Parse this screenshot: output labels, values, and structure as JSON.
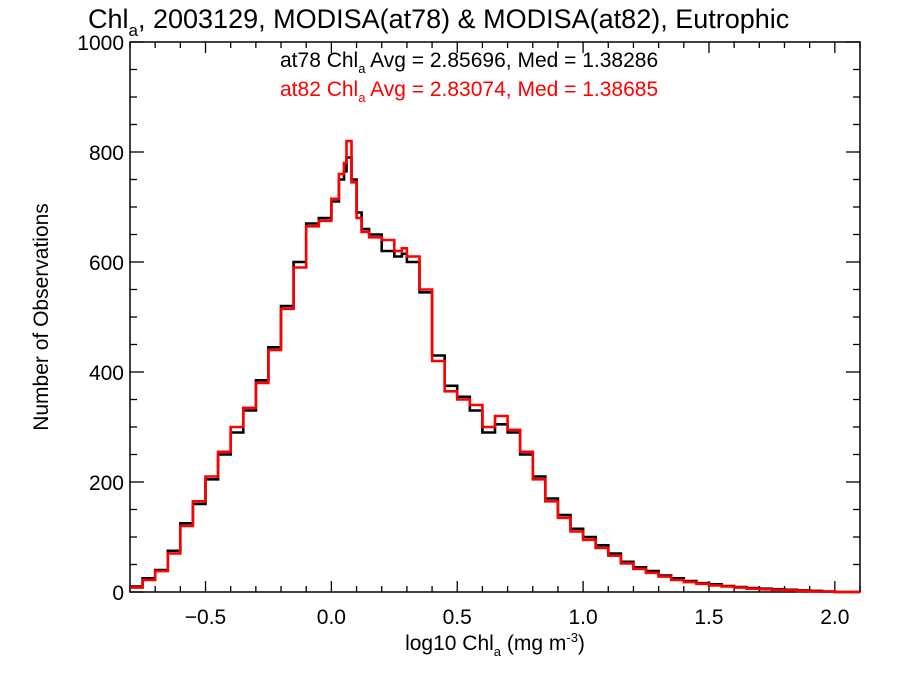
{
  "chart_data": {
    "type": "line",
    "title": {
      "main": "Chl",
      "sub": "a",
      "rest": ", 2003129, MODISA(at78) & MODISA(at82), Eutrophic"
    },
    "xlabel": {
      "main": "log10 Chl",
      "sub": "a",
      "unit_pre": " (mg m",
      "unit_sup": "-3",
      "unit_post": ")"
    },
    "ylabel": "Number of Observations",
    "xlim": [
      -0.8,
      2.1
    ],
    "ylim": [
      0,
      1000
    ],
    "xticks": [
      -0.5,
      0.0,
      0.5,
      1.0,
      1.5,
      2.0
    ],
    "xtick_labels": [
      "−0.5",
      "0.0",
      "0.5",
      "1.0",
      "1.5",
      "2.0"
    ],
    "yticks": [
      0,
      200,
      400,
      600,
      800,
      1000
    ],
    "ytick_labels": [
      "0",
      "200",
      "400",
      "600",
      "800",
      "1000"
    ],
    "grid": false,
    "step": "histogram",
    "annotations": [
      {
        "prefix": "at78 Chl",
        "sub": "a",
        "suffix": " Avg = 2.85696, Med = 1.38286",
        "color": "#000000"
      },
      {
        "prefix": "at82 Chl",
        "sub": "a",
        "suffix": " Avg = 2.83074, Med = 1.38685",
        "color": "#ff0000"
      }
    ],
    "series": [
      {
        "color": "#000000",
        "x": [
          -0.8,
          -0.75,
          -0.7,
          -0.65,
          -0.6,
          -0.55,
          -0.5,
          -0.45,
          -0.4,
          -0.35,
          -0.3,
          -0.25,
          -0.2,
          -0.15,
          -0.1,
          -0.05,
          0.0,
          0.03,
          0.05,
          0.06,
          0.08,
          0.1,
          0.12,
          0.15,
          0.2,
          0.25,
          0.28,
          0.3,
          0.35,
          0.4,
          0.45,
          0.5,
          0.55,
          0.6,
          0.65,
          0.7,
          0.75,
          0.8,
          0.85,
          0.9,
          0.95,
          1.0,
          1.05,
          1.1,
          1.15,
          1.2,
          1.25,
          1.3,
          1.35,
          1.4,
          1.45,
          1.5,
          1.55,
          1.6,
          1.65,
          1.7,
          1.75,
          1.8,
          1.85,
          1.9,
          1.95,
          2.0,
          2.05
        ],
        "y": [
          10,
          25,
          40,
          75,
          125,
          160,
          205,
          250,
          290,
          330,
          385,
          445,
          520,
          600,
          670,
          680,
          710,
          750,
          765,
          790,
          750,
          690,
          660,
          650,
          620,
          610,
          615,
          600,
          545,
          430,
          375,
          355,
          330,
          290,
          305,
          290,
          250,
          210,
          170,
          140,
          115,
          100,
          85,
          70,
          55,
          45,
          38,
          30,
          25,
          20,
          16,
          14,
          11,
          9,
          7,
          6,
          5,
          4,
          3,
          2,
          1,
          0,
          0
        ]
      },
      {
        "color": "#ff0000",
        "x": [
          -0.8,
          -0.75,
          -0.7,
          -0.65,
          -0.6,
          -0.55,
          -0.5,
          -0.45,
          -0.4,
          -0.35,
          -0.3,
          -0.25,
          -0.2,
          -0.15,
          -0.1,
          -0.05,
          0.0,
          0.03,
          0.05,
          0.06,
          0.08,
          0.1,
          0.12,
          0.15,
          0.2,
          0.25,
          0.28,
          0.3,
          0.35,
          0.4,
          0.45,
          0.5,
          0.55,
          0.6,
          0.65,
          0.7,
          0.75,
          0.8,
          0.85,
          0.9,
          0.95,
          1.0,
          1.05,
          1.1,
          1.15,
          1.2,
          1.25,
          1.3,
          1.35,
          1.4,
          1.45,
          1.5,
          1.55,
          1.6,
          1.65,
          1.7,
          1.75,
          1.8,
          1.85,
          1.9,
          1.95,
          2.0,
          2.05
        ],
        "y": [
          8,
          22,
          38,
          70,
          120,
          165,
          210,
          255,
          300,
          335,
          380,
          440,
          515,
          590,
          665,
          675,
          715,
          760,
          780,
          820,
          745,
          680,
          655,
          645,
          640,
          620,
          625,
          610,
          550,
          420,
          365,
          350,
          340,
          300,
          320,
          295,
          255,
          205,
          165,
          135,
          110,
          95,
          80,
          66,
          52,
          42,
          35,
          28,
          22,
          18,
          15,
          12,
          10,
          8,
          6,
          5,
          4,
          3,
          2,
          1,
          1,
          0,
          0
        ]
      }
    ]
  }
}
